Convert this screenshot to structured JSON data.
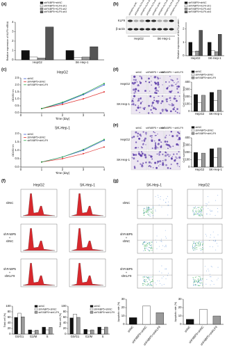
{
  "chart_data": [
    {
      "type": "bar",
      "y_label": "Relative expression of KLF9 mRNA",
      "categories": [
        "HepG2",
        "SK-Hep-1"
      ],
      "series": [
        {
          "name": "shFABP5+shNC",
          "color": "#111111",
          "values": [
            1,
            1
          ]
        },
        {
          "name": "shFABP5+KLF9-sh1",
          "color": "#ffffff",
          "values": [
            0.3,
            0.25
          ]
        },
        {
          "name": "shFABP5+KLF9-sh2",
          "color": "#9a9a9a",
          "values": [
            0.2,
            0.3
          ]
        },
        {
          "name": "shFABP5+KLF9-sh3",
          "color": "#555555",
          "values": [
            3.5,
            1.4
          ]
        }
      ],
      "ylim": [
        0,
        4
      ],
      "yticks": [
        0,
        1,
        2,
        3,
        4
      ]
    },
    {
      "type": "bar",
      "y_label": "Relative expression of KLF9 protein",
      "categories": [
        "HepG2",
        "SK-Hep-1"
      ],
      "series": [
        {
          "name": "shFABP5+shNC",
          "color": "#111111",
          "values": [
            1,
            1
          ]
        },
        {
          "name": "shFABP5+KLF9-sh1",
          "color": "#ffffff",
          "values": [
            0.3,
            0.4
          ]
        },
        {
          "name": "shFABP5+KLF9-sh2",
          "color": "#9a9a9a",
          "values": [
            0.35,
            0.3
          ]
        },
        {
          "name": "shFABP5+KLF9-sh3",
          "color": "#555555",
          "values": [
            1.9,
            1.6
          ]
        }
      ],
      "ylim": [
        0,
        2.5
      ],
      "yticks": [
        0,
        1,
        2
      ]
    },
    {
      "type": "line",
      "title": "HepG2",
      "x_label": "Time (day)",
      "y_label": "OD450 nm",
      "x": [
        1,
        2,
        3,
        4
      ],
      "xlim": [
        0,
        4
      ],
      "xticks": [
        0,
        1,
        2,
        3,
        4
      ],
      "series": [
        {
          "name": "shNC",
          "color": "#3b5bd6",
          "values": [
            0.3,
            0.7,
            1.3,
            2.0
          ]
        },
        {
          "name": "shFABP5+shNC",
          "color": "#e03030",
          "values": [
            0.3,
            0.6,
            1.0,
            1.5
          ]
        },
        {
          "name": "shFABP5+shKLF9",
          "color": "#2aa84a",
          "values": [
            0.3,
            0.75,
            1.35,
            2.1
          ]
        }
      ],
      "ylim": [
        0,
        2.5
      ],
      "yticks": [
        {
          "value": 0,
          "label": "0.0"
        },
        {
          "value": 0.5,
          "label": "0.5"
        },
        {
          "value": 1,
          "label": "1.0"
        },
        {
          "value": 1.5,
          "label": "1.5"
        },
        {
          "value": 2,
          "label": "2.0"
        },
        {
          "value": 2.5,
          "label": "2.5"
        }
      ]
    },
    {
      "type": "line",
      "title": "SK-Hep-1",
      "x_label": "Time (day)",
      "y_label": "OD450 nm",
      "x": [
        1,
        2,
        3,
        4
      ],
      "xlim": [
        0,
        4
      ],
      "xticks": [
        0,
        1,
        2,
        3,
        4
      ],
      "series": [
        {
          "name": "shNC",
          "color": "#3b5bd6",
          "values": [
            0.3,
            0.6,
            1.0,
            1.6
          ]
        },
        {
          "name": "shFABP5+shNC",
          "color": "#e03030",
          "values": [
            0.3,
            0.5,
            0.8,
            1.2
          ]
        },
        {
          "name": "shFABP5+shKLF9",
          "color": "#2aa84a",
          "values": [
            0.3,
            0.6,
            1.05,
            1.65
          ]
        }
      ],
      "ylim": [
        0,
        2
      ],
      "yticks": [
        {
          "value": 0,
          "label": "0.0"
        },
        {
          "value": 0.5,
          "label": "0.5"
        },
        {
          "value": 1,
          "label": "1.0"
        },
        {
          "value": 1.5,
          "label": "1.5"
        },
        {
          "value": 2,
          "label": "2.0"
        }
      ]
    },
    {
      "type": "bar",
      "y_label": "Cell number / field",
      "categories": [
        "HepG2",
        "SK-Hep-1"
      ],
      "series": [
        {
          "name": "shNC",
          "color": "#111111",
          "values": [
            230,
            260
          ]
        },
        {
          "name": "shFABP5+shNC",
          "color": "#ffffff",
          "values": [
            120,
            150
          ]
        },
        {
          "name": "shFABP5+shKLF9",
          "color": "#9a9a9a",
          "values": [
            220,
            290
          ]
        }
      ],
      "ylim": [
        0,
        400
      ],
      "yticks": [
        0,
        100,
        200,
        300,
        400
      ]
    },
    {
      "type": "bar",
      "y_label": "Cell number / field",
      "categories": [
        "HepG2",
        "SK-Hep-1"
      ],
      "series": [
        {
          "name": "shNC",
          "color": "#111111",
          "values": [
            200,
            250
          ]
        },
        {
          "name": "shFABP5+shNC",
          "color": "#ffffff",
          "values": [
            100,
            130
          ]
        },
        {
          "name": "shFABP5+shKLF9",
          "color": "#9a9a9a",
          "values": [
            190,
            260
          ]
        }
      ],
      "ylim": [
        0,
        400
      ],
      "yticks": [
        0,
        100,
        200,
        300,
        400
      ]
    },
    {
      "type": "bar",
      "y_label": "Total cell (%)",
      "categories": [
        "G0/G1",
        "G2/M",
        "S"
      ],
      "series": [
        {
          "name": "shNC",
          "color": "#111111",
          "values": [
            60,
            15,
            25
          ]
        },
        {
          "name": "shFABP5+shNC",
          "color": "#ffffff",
          "values": [
            75,
            10,
            15
          ]
        },
        {
          "name": "shFABP5+shKLF9",
          "color": "#9a9a9a",
          "values": [
            62,
            14,
            24
          ]
        }
      ],
      "ylim": [
        0,
        100
      ],
      "yticks": [
        0,
        20,
        40,
        60,
        80,
        100
      ]
    },
    {
      "type": "bar",
      "y_label": "Total cell (%)",
      "categories": [
        "G0/G1",
        "G2/M",
        "S"
      ],
      "series": [
        {
          "name": "shNC",
          "color": "#111111",
          "values": [
            58,
            17,
            25
          ]
        },
        {
          "name": "shFABP5+shNC",
          "color": "#ffffff",
          "values": [
            72,
            12,
            16
          ]
        },
        {
          "name": "shFABP5+shKLF9",
          "color": "#9a9a9a",
          "values": [
            60,
            15,
            25
          ]
        }
      ],
      "ylim": [
        0,
        100
      ],
      "yticks": [
        0,
        20,
        40,
        60,
        80,
        100
      ]
    },
    {
      "type": "bar",
      "y_label": "Apoptotic rate (%)",
      "categories": [
        "shNC",
        "shFABP5+shNC",
        "shFABP5+shKLF9"
      ],
      "values": [
        8,
        22,
        14
      ],
      "colors": [
        "#111111",
        "#ffffff",
        "#9a9a9a"
      ],
      "ylim": [
        0,
        30
      ],
      "yticks": [
        0,
        10,
        20,
        30
      ]
    },
    {
      "type": "bar",
      "y_label": "Apoptotic rate (%)",
      "categories": [
        "shNC",
        "shFABP5+shNC",
        "shFABP5+shKLF9"
      ],
      "values": [
        6,
        18,
        10
      ],
      "colors": [
        "#111111",
        "#ffffff",
        "#9a9a9a"
      ],
      "ylim": [
        0,
        30
      ],
      "yticks": [
        0,
        10,
        20,
        30
      ]
    }
  ],
  "figure": {
    "panel_letters": [
      "(a)",
      "(b)",
      "(c)",
      "(d)",
      "(e)",
      "(f)",
      "(g)"
    ],
    "blot": {
      "bands": [
        "KLF9",
        "β-actin"
      ],
      "cells": [
        "HepG2",
        "SK-Hep-1"
      ]
    },
    "migration": {
      "groups": [
        "shNC",
        "shFABP5 + shNC",
        "shFABP5 + shKLF9"
      ],
      "cells": [
        "HepG2",
        "SK-Hep-1"
      ]
    },
    "invasion": {
      "groups": [
        "shNC",
        "shFABP5 + shNC",
        "shFABP5 + shKLF9"
      ],
      "cells": [
        "HepG2",
        "SK-Hep-1"
      ]
    },
    "cell_cycle": {
      "cells": [
        "HepG2",
        "SK-Hep-1"
      ],
      "groups": [
        "shNC",
        "shFABP5 + shNC",
        "shFABP5 + shKLF9"
      ]
    },
    "apoptosis": {
      "cells": [
        "SK-Hep-1",
        "HepG2"
      ],
      "groups": [
        "shNC",
        "shFABP5 + shNC",
        "shFABP5 + shKLF9"
      ]
    }
  }
}
